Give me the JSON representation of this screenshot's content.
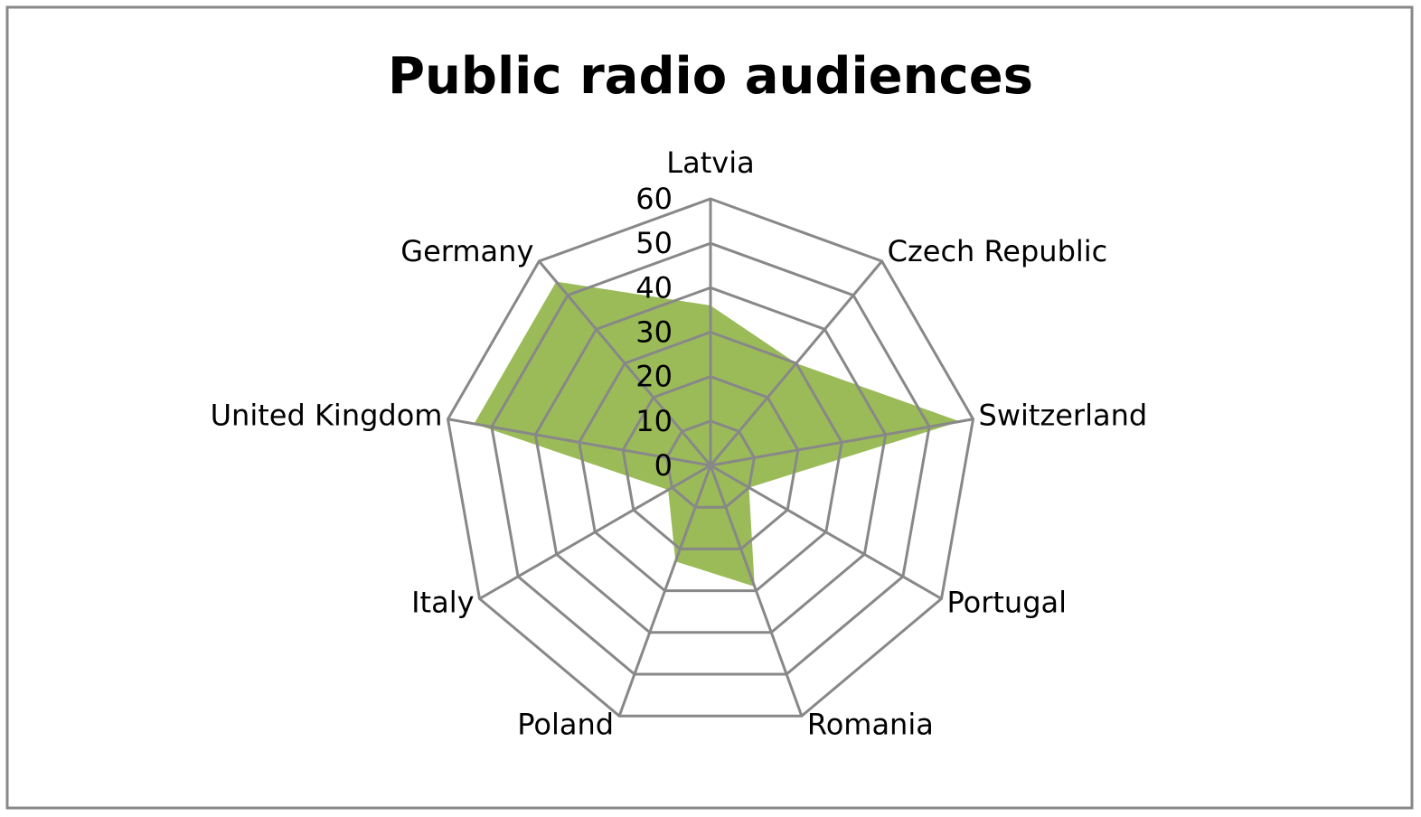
{
  "chart_data": {
    "type": "radar",
    "title": "Public radio audiences",
    "categories": [
      "Latvia",
      "Czech Republic",
      "Switzerland",
      "Portugal",
      "Romania",
      "Poland",
      "Italy",
      "United Kingdom",
      "Germany"
    ],
    "values": [
      36,
      30,
      57,
      10,
      29,
      23,
      11,
      54,
      54
    ],
    "color": "#9bbb59",
    "ylim": [
      0,
      60
    ],
    "yticks": [
      0,
      10,
      20,
      30,
      40,
      50,
      60
    ],
    "grid": true
  }
}
